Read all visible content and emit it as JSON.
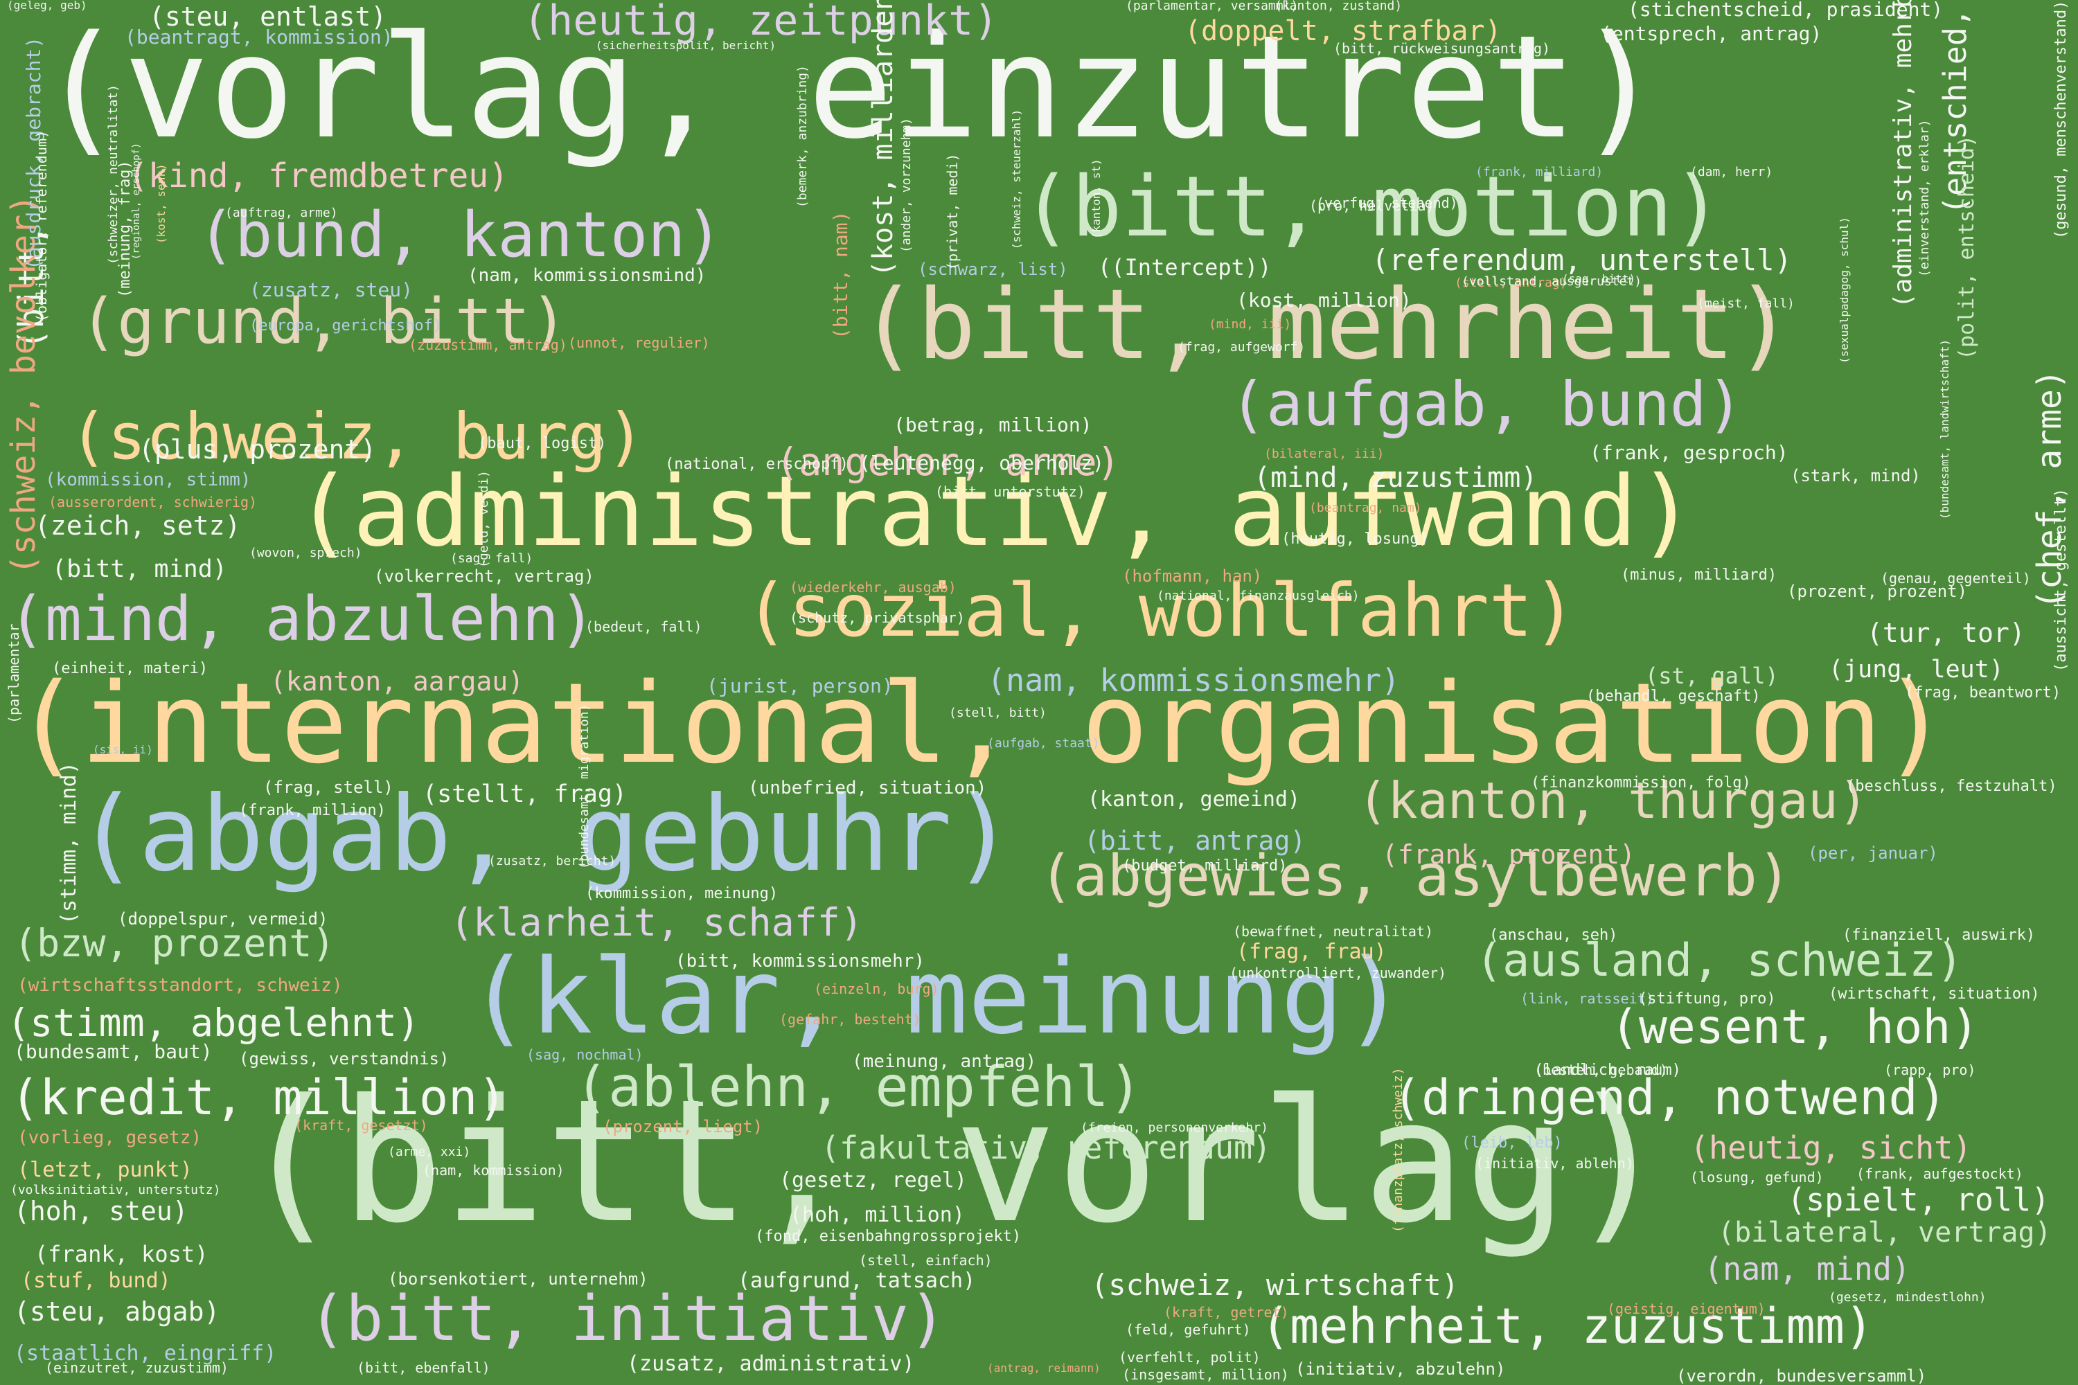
{
  "background": "#4a8a3a",
  "palette": {
    "white": "#f4f6f1",
    "mint": "#cfe9c8",
    "yellow": "#fff2b8",
    "peach": "#ffd8a0",
    "beige": "#e6d7bd",
    "lavender": "#dccfe6",
    "pink": "#f5c8c8",
    "blue": "#b5cde6",
    "salmon": "#f0a882",
    "teal": "#a4d6d6"
  },
  "words": [
    {
      "text": "(vorlag, einzutret)",
      "c": "white"
    },
    {
      "text": "(bitt, vorlag)",
      "c": "mint"
    },
    {
      "text": "(international, organisation)",
      "c": "peach"
    },
    {
      "text": "(administrativ, aufwand)",
      "c": "yellow"
    },
    {
      "text": "(klar, meinung)",
      "c": "blue"
    },
    {
      "text": "(abgab, gebuhr)",
      "c": "blue"
    },
    {
      "text": "(bitt, mehrheit)",
      "c": "beige"
    },
    {
      "text": "(bitt, motion)",
      "c": "mint"
    },
    {
      "text": "(sozial, wohlfahrt)",
      "c": "peach"
    },
    {
      "text": "(bitt, initiativ)",
      "c": "lavender"
    },
    {
      "text": "(mind, abzulehn)",
      "c": "lavender"
    },
    {
      "text": "(abgewies, asylbewerb)",
      "c": "beige"
    },
    {
      "text": "(bund, kanton)",
      "c": "lavender"
    },
    {
      "text": "(grund, bitt)",
      "c": "beige"
    },
    {
      "text": "(schweiz, burg)",
      "c": "peach"
    },
    {
      "text": "(aufgab, bund)",
      "c": "lavender"
    },
    {
      "text": "(ablehn, empfehl)",
      "c": "mint"
    },
    {
      "text": "(dringend, notwend)",
      "c": "white"
    },
    {
      "text": "(kanton, thurgau)",
      "c": "beige"
    },
    {
      "text": "(mehrheit, zuzustimm)",
      "c": "white"
    },
    {
      "text": "(ausland, schweiz)",
      "c": "mint"
    },
    {
      "text": "(wesent, hoh)",
      "c": "white"
    },
    {
      "text": "(kredit, million)",
      "c": "white"
    },
    {
      "text": "(stimm, abgelehnt)",
      "c": "white"
    },
    {
      "text": "(heutig, zeitpunkt)",
      "c": "lavender"
    },
    {
      "text": "(angehor, arme)",
      "c": "pink"
    },
    {
      "text": "(klarheit, schaff)",
      "c": "lavender"
    },
    {
      "text": "(bzw, prozent)",
      "c": "mint"
    },
    {
      "text": "(kind, fremdbetreu)",
      "c": "pink"
    },
    {
      "text": "(nam, kommissionsmehr)",
      "c": "blue"
    },
    {
      "text": "(fakultativ, referendum)",
      "c": "mint"
    },
    {
      "text": "(schweiz, wirtschaft)",
      "c": "white"
    },
    {
      "text": "(referendum, unterstell)",
      "c": "white"
    },
    {
      "text": "(bilateral, vertrag)",
      "c": "mint"
    },
    {
      "text": "(spielt, roll)",
      "c": "white"
    },
    {
      "text": "(nam, mind)",
      "c": "lavender"
    },
    {
      "text": "(heutig, sicht)",
      "c": "pink"
    },
    {
      "text": "(steu, entlast)",
      "c": "white"
    },
    {
      "text": "(doppelt, strafbar)",
      "c": "peach"
    },
    {
      "text": "(kanton, aargau)",
      "c": "pink"
    },
    {
      "text": "(plus, prozent)",
      "c": "white"
    },
    {
      "text": "(mind, zuzustimm)",
      "c": "white"
    },
    {
      "text": "(bitt, antrag)",
      "c": "blue"
    },
    {
      "text": "(frank, prozent)",
      "c": "pink"
    },
    {
      "text": "(stellt, frag)",
      "c": "white"
    },
    {
      "text": "(zeich, setz)",
      "c": "white"
    },
    {
      "text": "(bitt, mind)",
      "c": "white"
    },
    {
      "text": "(tur, tor)",
      "c": "white"
    },
    {
      "text": "(jung, leut)",
      "c": "white"
    },
    {
      "text": "(st, gall)",
      "c": "mint"
    },
    {
      "text": "(steu, abgab)",
      "c": "white"
    },
    {
      "text": "(hoh, steu)",
      "c": "white"
    },
    {
      "text": "(frank, kost)",
      "c": "white"
    },
    {
      "text": "(stuf, bund)",
      "c": "peach"
    },
    {
      "text": "(staatlich, eingriff)",
      "c": "blue"
    },
    {
      "text": "(letzt, punkt)",
      "c": "peach"
    },
    {
      "text": "(bundesamt, baut)",
      "c": "white"
    },
    {
      "text": "(kanton, gemeind)",
      "c": "white"
    },
    {
      "text": "(frag, frau)",
      "c": "peach"
    },
    {
      "text": "(zusatz, administrativ)",
      "c": "white"
    },
    {
      "text": "(aufgrund, tatsach)",
      "c": "white"
    },
    {
      "text": "(gesetz, regel)",
      "c": "white"
    },
    {
      "text": "(hoh, million)",
      "c": "white"
    },
    {
      "text": "(leutenegg, oberholz)",
      "c": "white"
    },
    {
      "text": "(frank, gesproch)",
      "c": "white"
    },
    {
      "text": "(betrag, million)",
      "c": "white"
    },
    {
      "text": "(kost, million)",
      "c": "white"
    },
    {
      "text": "((Intercept))",
      "c": "white"
    },
    {
      "text": "(entsprech, antrag)",
      "c": "white"
    },
    {
      "text": "(stichentscheid, prasident)",
      "c": "white"
    },
    {
      "text": "(beantragt, kommission)",
      "c": "blue"
    },
    {
      "text": "(nam, kommissionsmind)",
      "c": "white"
    },
    {
      "text": "(zusatz, steu)",
      "c": "blue"
    },
    {
      "text": "(kommission, stimm)",
      "c": "blue"
    },
    {
      "text": "(jurist, person)",
      "c": "blue"
    },
    {
      "text": "(unbefried, situation)",
      "c": "white"
    },
    {
      "text": "(bitt, kommissionsmehr)",
      "c": "white"
    },
    {
      "text": "(meinung, antrag)",
      "c": "white"
    },
    {
      "text": "(wirtschaftsstandort, schweiz)",
      "c": "salmon"
    },
    {
      "text": "(vorlieg, gesetz)",
      "c": "salmon"
    },
    {
      "text": "(doppelspur, vermeid)",
      "c": "white"
    },
    {
      "text": "(frag, stell)",
      "c": "white"
    },
    {
      "text": "(frank, million)",
      "c": "white"
    },
    {
      "text": "(einheit, materi)",
      "c": "white"
    },
    {
      "text": "(volkerrecht, vertrag)",
      "c": "white"
    },
    {
      "text": "(hofmann, han)",
      "c": "salmon"
    },
    {
      "text": "(heutig, losung)",
      "c": "white"
    },
    {
      "text": "(minus, milliard)",
      "c": "white"
    },
    {
      "text": "(prozent, prozent)",
      "c": "white"
    },
    {
      "text": "(stark, mind)",
      "c": "white"
    },
    {
      "text": "(beschluss, festzuhalt)",
      "c": "white"
    },
    {
      "text": "(frag, beantwort)",
      "c": "white"
    },
    {
      "text": "(behandl, geschaft)",
      "c": "white"
    },
    {
      "text": "(per, januar)",
      "c": "blue"
    },
    {
      "text": "(budget, milliard)",
      "c": "white"
    },
    {
      "text": "(finanzkommission, folg)",
      "c": "white"
    },
    {
      "text": "(kommission, meinung)",
      "c": "white"
    },
    {
      "text": "(bewaffnet, neutralitat)",
      "c": "white"
    },
    {
      "text": "(unkontrolliert, zuwander)",
      "c": "white"
    },
    {
      "text": "(anschau, seh)",
      "c": "white"
    },
    {
      "text": "(finanziell, auswirk)",
      "c": "white"
    },
    {
      "text": "(link, ratsseit)",
      "c": "blue"
    },
    {
      "text": "(stiftung, pro)",
      "c": "white"
    },
    {
      "text": "(wirtschaft, situation)",
      "c": "white"
    },
    {
      "text": "(landlich, raum)",
      "c": "white"
    },
    {
      "text": "(besteh, gebaud)",
      "c": "white"
    },
    {
      "text": "(rapp, pro)",
      "c": "white"
    },
    {
      "text": "(frank, aufgestockt)",
      "c": "white"
    },
    {
      "text": "(losung, gefund)",
      "c": "white"
    },
    {
      "text": "(leib, leb)",
      "c": "blue"
    },
    {
      "text": "(initiativ, ablehn)",
      "c": "white"
    },
    {
      "text": "(freien, personenverkehr)",
      "c": "white"
    },
    {
      "text": "(gefahr, besteht)",
      "c": "salmon"
    },
    {
      "text": "(einzeln, burg)",
      "c": "salmon"
    },
    {
      "text": "(sag, nochmal)",
      "c": "blue"
    },
    {
      "text": "(gewiss, verstandnis)",
      "c": "white"
    },
    {
      "text": "(kraft, gesetzt)",
      "c": "salmon"
    },
    {
      "text": "(prozent, liegt)",
      "c": "salmon"
    },
    {
      "text": "(arme, xxi)",
      "c": "white"
    },
    {
      "text": "(nam, kommission)",
      "c": "white"
    },
    {
      "text": "(volksinitiativ, unterstutz)",
      "c": "white"
    },
    {
      "text": "(fond, eisenbahngrossprojekt)",
      "c": "white"
    },
    {
      "text": "(stell, einfach)",
      "c": "white"
    },
    {
      "text": "(borsenkotiert, unternehm)",
      "c": "white"
    },
    {
      "text": "(kraft, getret)",
      "c": "salmon"
    },
    {
      "text": "(feld, gefuhrt)",
      "c": "white"
    },
    {
      "text": "(verfehlt, polit)",
      "c": "white"
    },
    {
      "text": "(insgesamt, million)",
      "c": "white"
    },
    {
      "text": "(bitt, ebenfall)",
      "c": "white"
    },
    {
      "text": "(antrag, reimann)",
      "c": "salmon"
    },
    {
      "text": "(initiativ, abzulehn)",
      "c": "white"
    },
    {
      "text": "(verordn, bundesversamml)",
      "c": "white"
    },
    {
      "text": "(geistig, eigentum)",
      "c": "salmon"
    },
    {
      "text": "(gesetz, mindestlohn)",
      "c": "white"
    },
    {
      "text": "(einzutret, zuzustimm)",
      "c": "white"
    },
    {
      "text": "(ausserordent, schwierig)",
      "c": "salmon"
    },
    {
      "text": "(europa, gerichtshof)",
      "c": "blue"
    },
    {
      "text": "(unnot, regulier)",
      "c": "salmon"
    },
    {
      "text": "(zuzustimm, antrag)",
      "c": "salmon"
    },
    {
      "text": "(baut, logist)",
      "c": "white"
    },
    {
      "text": "(national, erschopf)",
      "c": "white"
    },
    {
      "text": "(bitt, unterstutz)",
      "c": "white"
    },
    {
      "text": "(wovon, sprech)",
      "c": "white"
    },
    {
      "text": "(sag, fall)",
      "c": "white"
    },
    {
      "text": "(wiederkehr, ausgab)",
      "c": "salmon"
    },
    {
      "text": "(national, finanzausgleich)",
      "c": "white"
    },
    {
      "text": "(schutz, privatsphar)",
      "c": "white"
    },
    {
      "text": "(bedeut, fall)",
      "c": "white"
    },
    {
      "text": "(beantrag, nam)",
      "c": "salmon"
    },
    {
      "text": "(bilateral, iii)",
      "c": "salmon"
    },
    {
      "text": "(mind, iii)",
      "c": "salmon"
    },
    {
      "text": "(frag, aufgeworf)",
      "c": "white"
    },
    {
      "text": "(stell, antrag)",
      "c": "salmon"
    },
    {
      "text": "(vollstand, ausgerustet)",
      "c": "white"
    },
    {
      "text": "(sag, bitt)",
      "c": "white"
    },
    {
      "text": "(meist, fall)",
      "c": "white"
    },
    {
      "text": "(frank, milliard)",
      "c": "blue"
    },
    {
      "text": "(dam, herr)",
      "c": "white"
    },
    {
      "text": "(verfug, stehend)",
      "c": "white"
    },
    {
      "text": "(pro, helvetia)",
      "c": "white"
    },
    {
      "text": "(schwarz, list)",
      "c": "blue"
    },
    {
      "text": "(genau, gegenteil)",
      "c": "white"
    },
    {
      "text": "(stell, bitt)",
      "c": "white"
    },
    {
      "text": "(aufgab, staat)",
      "c": "blue"
    },
    {
      "text": "(sis, ii)",
      "c": "blue"
    },
    {
      "text": "(zusatz, bericht)",
      "c": "white"
    },
    {
      "text": "(auftrag, arme)",
      "c": "white"
    },
    {
      "text": "(geleg, geb)",
      "c": "white"
    },
    {
      "text": "(sicherheitspolit, bericht)",
      "c": "white"
    },
    {
      "text": "(parlamentar, versamml)",
      "c": "white"
    },
    {
      "text": "(kanton, zustand)",
      "c": "white"
    },
    {
      "text": "(bitt, rückweisungsantrag)",
      "c": "white"
    },
    {
      "text": "(parlamentar",
      "c": "white"
    },
    {
      "text": "(bitt,",
      "c": "white"
    },
    {
      "text": "(schweiz, bevolker)",
      "c": "salmon"
    },
    {
      "text": "(ausdruck, gebracht)",
      "c": "blue"
    },
    {
      "text": "(obligator, referendum)",
      "c": "white"
    },
    {
      "text": "(meinung, frag)",
      "c": "white"
    },
    {
      "text": "(schweizer, neutralitat)",
      "c": "white"
    },
    {
      "text": "(regional, erschopf)",
      "c": "white"
    },
    {
      "text": "(kost, senk)",
      "c": "peach"
    },
    {
      "text": "(stimm, mind)",
      "c": "white"
    },
    {
      "text": "(geld, verdi)",
      "c": "white"
    },
    {
      "text": "(bundesamt, migration)",
      "c": "white"
    },
    {
      "text": "(bemerk, anzubring)",
      "c": "white"
    },
    {
      "text": "(bitt, nam)",
      "c": "salmon"
    },
    {
      "text": "(kost, milliardenhoh)",
      "c": "white"
    },
    {
      "text": "(ander, vorzunehm)",
      "c": "white"
    },
    {
      "text": "(privat, medi)",
      "c": "white"
    },
    {
      "text": "(schweiz, steuerzahl)",
      "c": "white"
    },
    {
      "text": "(kanton, st)",
      "c": "white"
    },
    {
      "text": "(sexualpadagog, schul)",
      "c": "white"
    },
    {
      "text": "(finanzplatz, schweiz)",
      "c": "peach"
    },
    {
      "text": "(entschied, auffass)",
      "c": "white"
    },
    {
      "text": "(administrativ, mehrbelast)",
      "c": "white"
    },
    {
      "text": "(einverstand, erklar)",
      "c": "white"
    },
    {
      "text": "(polit, entscheid)",
      "c": "mint"
    },
    {
      "text": "(chef, arme)",
      "c": "white"
    },
    {
      "text": "(bundesamt, landwirtschaft)",
      "c": "white"
    },
    {
      "text": "(aussicht, gestellt)",
      "c": "white"
    },
    {
      "text": "(gesund, menschenverstand)",
      "c": "white"
    }
  ]
}
